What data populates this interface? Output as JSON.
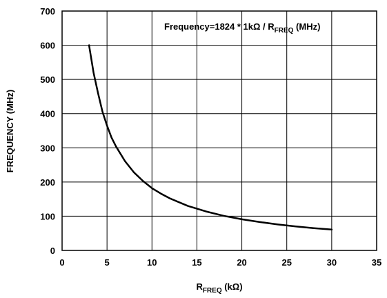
{
  "chart_data": {
    "type": "line",
    "title": "",
    "annotation": {
      "prefix": "Frequency=1824 * 1kΩ / R",
      "sub": "FREQ",
      "suffix": " (MHz)"
    },
    "ylabel": "FREQUENCY (MHz)",
    "xlabel": {
      "main": "R",
      "sub": "FREQ",
      "unit": " (kΩ)"
    },
    "xlim": [
      0,
      35
    ],
    "ylim": [
      0,
      700
    ],
    "xticks": [
      "0",
      "5",
      "10",
      "15",
      "20",
      "25",
      "30",
      "35"
    ],
    "yticks": [
      "0",
      "100",
      "200",
      "300",
      "400",
      "500",
      "600",
      "700"
    ],
    "grid": true,
    "series": [
      {
        "x": [
          3.0,
          3.5,
          4.0,
          4.5,
          5.0,
          5.5,
          6.0,
          7.0,
          8.0,
          9.0,
          10.0,
          11.0,
          12.0,
          14.0,
          16.0,
          18.0,
          20.0,
          22.0,
          24.0,
          26.0,
          28.0,
          30.0
        ],
        "values": [
          600,
          520,
          460,
          405,
          365,
          330,
          304,
          261,
          228,
          203,
          182,
          166,
          152,
          130,
          114,
          101,
          91,
          83,
          76,
          70,
          65,
          61
        ]
      }
    ]
  }
}
